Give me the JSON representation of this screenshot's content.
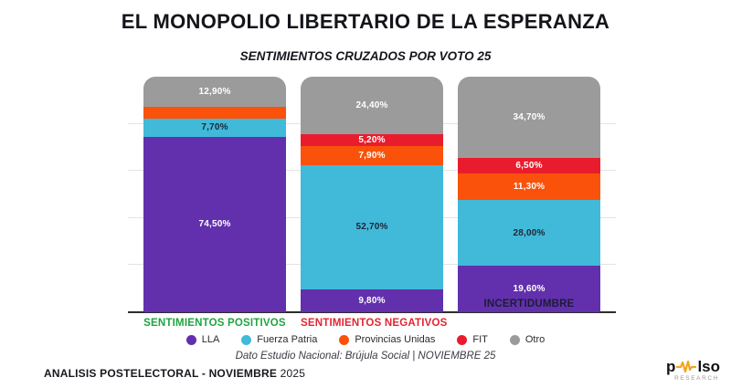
{
  "header": {
    "title": "EL MONOPOLIO LIBERTARIO DE LA ESPERANZA",
    "subtitle": "SENTIMIENTOS CRUZADOS POR VOTO 25"
  },
  "chart_data": {
    "type": "bar",
    "variant": "stacked-100-percent-columns",
    "title": "SENTIMIENTOS CRUZADOS POR VOTO 25",
    "categories": [
      "SENTIMIENTOS POSITIVOS",
      "SENTIMIENTOS NEGATIVOS",
      "INCERTIDUMBRE"
    ],
    "category_colors": [
      "#1fa441",
      "#e32431",
      "#1d1c38"
    ],
    "category_label_placement": [
      "below",
      "below",
      "inside-bottom"
    ],
    "stack_order_bottom_to_top": [
      "LLA",
      "Fuerza Patria",
      "Provincias Unidas",
      "FIT",
      "Otro"
    ],
    "series": [
      {
        "name": "LLA",
        "color": "#6230ac",
        "label_color": "#ffffff",
        "values": [
          74.5,
          9.8,
          19.6
        ],
        "value_labels": [
          "74,50%",
          "9,80%",
          "19,60%"
        ]
      },
      {
        "name": "Fuerza Patria",
        "color": "#41b9d9",
        "label_color": "#1e2434",
        "values": [
          7.7,
          52.7,
          28.0
        ],
        "value_labels": [
          "7,70%",
          "52,70%",
          "28,00%"
        ]
      },
      {
        "name": "Provincias Unidas",
        "color": "#fa520b",
        "label_color": "#ffffff",
        "values": [
          4.9,
          7.9,
          11.3
        ],
        "value_labels": [
          "",
          "7,90%",
          "11,30%"
        ]
      },
      {
        "name": "FIT",
        "color": "#e91c2d",
        "label_color": "#ffffff",
        "values": [
          0,
          5.2,
          6.5
        ],
        "value_labels": [
          "",
          "5,20%",
          "6,50%"
        ]
      },
      {
        "name": "Otro",
        "color": "#9c9b9b",
        "label_color": "#ffffff",
        "values": [
          12.9,
          24.4,
          34.7
        ],
        "value_labels": [
          "12,90%",
          "24,40%",
          "34,70%"
        ]
      }
    ],
    "ylim": [
      0,
      100
    ],
    "gridlines": {
      "horizontal_percent": [
        20,
        40,
        60,
        80
      ]
    },
    "legend_position": "bottom"
  },
  "source_note": "Dato Estudio Nacional: Brújula Social | NOVIEMBRE 25",
  "footer": {
    "left_bold": "ANALISIS POSTELECTORAL - NOVIEMBRE",
    "left_year": "2025",
    "logo": {
      "prefix": "p",
      "suffix": "lso",
      "subtitle": "RESEARCH",
      "pulse_color": "#f5a41b"
    }
  }
}
